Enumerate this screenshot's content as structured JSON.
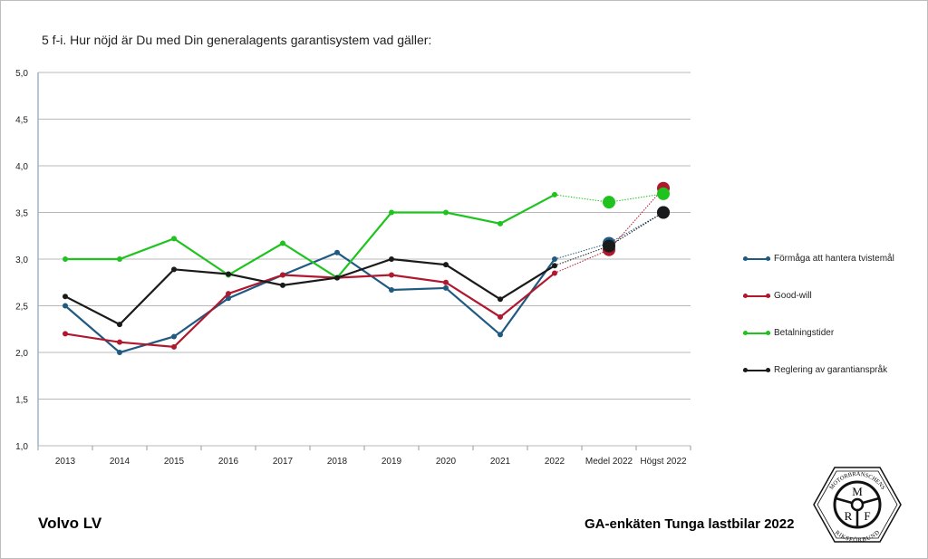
{
  "chart_data": {
    "type": "line",
    "title": "5 f-i. Hur nöjd är Du med Din generalagents garantisystem vad gäller:",
    "categories": [
      "2013",
      "2014",
      "2015",
      "2016",
      "2017",
      "2018",
      "2019",
      "2020",
      "2021",
      "2022",
      "Medel 2022",
      "Högst 2022"
    ],
    "ylim": [
      1.0,
      5.0
    ],
    "yticks": [
      "1,0",
      "1,5",
      "2,0",
      "2,5",
      "3,0",
      "3,5",
      "4,0",
      "4,5",
      "5,0"
    ],
    "grid": true,
    "legend_position": "right",
    "series": [
      {
        "name": "Förmåga att hantera tvistemål",
        "color": "#1f5a82",
        "values": [
          2.5,
          2.0,
          2.17,
          2.58,
          2.83,
          3.07,
          2.67,
          2.69,
          2.19,
          3.0,
          3.17,
          3.5
        ]
      },
      {
        "name": "Good-will",
        "color": "#b0182e",
        "values": [
          2.2,
          2.11,
          2.06,
          2.63,
          2.83,
          2.8,
          2.83,
          2.75,
          2.38,
          2.85,
          3.1,
          3.76
        ]
      },
      {
        "name": "Betalningstider",
        "color": "#1ec31e",
        "values": [
          3.0,
          3.0,
          3.22,
          2.83,
          3.17,
          2.8,
          3.5,
          3.5,
          3.38,
          3.69,
          3.61,
          3.7
        ]
      },
      {
        "name": "Reglering av garantianspråk",
        "color": "#1a1a1a",
        "values": [
          2.6,
          2.3,
          2.89,
          2.84,
          2.72,
          2.8,
          3.0,
          2.94,
          2.57,
          2.93,
          3.14,
          3.5
        ]
      }
    ]
  },
  "footer": {
    "brand": "Volvo LV",
    "survey": "GA-enkäten Tunga lastbilar 2022"
  },
  "logo": {
    "top_text": "MOTORBRANSCHENS",
    "bottom_text": "RIKSFÖRBUND",
    "letters": [
      "M",
      "R",
      "F"
    ]
  }
}
